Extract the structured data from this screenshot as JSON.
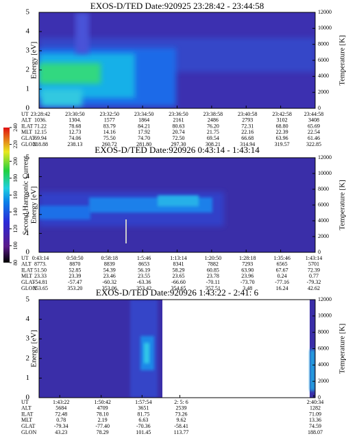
{
  "chart_data": [
    {
      "type": "spectrogram",
      "title": "EXOS-D/TED   Date:920925  23:28:42 - 23:44:58",
      "ylabel": "Energy [eV]",
      "y2label": "Temperature [K]",
      "ylim": [
        0,
        5
      ],
      "yticks": [
        0,
        1,
        2,
        3,
        4,
        5
      ],
      "y2lim": [
        0,
        12000
      ],
      "y2ticks": [
        0,
        2000,
        4000,
        6000,
        8000,
        10000,
        12000
      ],
      "table": {
        "labels": [
          "UT",
          "ALT",
          "ILAT",
          "MLT",
          "GLAT",
          "GLON"
        ],
        "rows": [
          [
            "23:28:42",
            "23:30:50",
            "23:32:50",
            "23:34:50",
            "23:36:50",
            "23:38:58",
            "23:40:58",
            "23:42:58",
            "23:44:58"
          ],
          [
            "1036.",
            "1304.",
            "1577",
            "1864",
            "2161",
            "2486",
            "2793",
            "3102",
            "3408"
          ],
          [
            "71.22",
            "78.68",
            "83.79",
            "84.21",
            "80.63",
            "76.20",
            "72.31",
            "68.80",
            "65.69"
          ],
          [
            "12.15",
            "12.73",
            "14.16",
            "17.92",
            "20.74",
            "21.75",
            "22.16",
            "22.39",
            "22.54"
          ],
          [
            "69.94",
            "74.06",
            "75.50",
            "74.70",
            "72.50",
            "69.54",
            "66.68",
            "63.96",
            "61.46"
          ],
          [
            "218.88",
            "238.13",
            "260.72",
            "281.80",
            "297.30",
            "308.21",
            "314.94",
            "319.57",
            "322.85"
          ]
        ]
      }
    },
    {
      "type": "spectrogram",
      "title": "EXOS-D/TED   Date:920926  0:43:14 - 1:43:14",
      "ylabel": "Energy [eV]",
      "y2label": "Temperature [K]",
      "ylim": [
        0,
        5
      ],
      "yticks": [
        0,
        1,
        2,
        3,
        4,
        5
      ],
      "y2lim": [
        0,
        12000
      ],
      "y2ticks": [
        0,
        2000,
        4000,
        6000,
        8000,
        10000,
        12000
      ],
      "table": {
        "labels": [
          "UT",
          "ALT",
          "ILAT",
          "MLT",
          "GLAT",
          "GLON"
        ],
        "rows": [
          [
            "0:43:14",
            "0:50:50",
            "0:58:18",
            "1:5:46",
            "1:13:14",
            "1:20:50",
            "1:28:18",
            "1:35:46",
            "1:43:14"
          ],
          [
            "8773.",
            "8870",
            "8839",
            "8653",
            "8341",
            "7882",
            "7293",
            "6565",
            "5701"
          ],
          [
            "51.50",
            "52.85",
            "54.39",
            "56.19",
            "58.29",
            "60.85",
            "63.90",
            "67.67",
            "72.39"
          ],
          [
            "23.33",
            "23.39",
            "23.46",
            "23.55",
            "23.65",
            "23.78",
            "23.96",
            "0.24",
            "0.77"
          ],
          [
            "-54.81",
            "-57.47",
            "-60.32",
            "-63.36",
            "-66.60",
            "-70.11",
            "-73.70",
            "-77.16",
            "-79.32"
          ],
          [
            "353.65",
            "353.20",
            "353.06",
            "353.42",
            "354.65",
            "357.51",
            "3.48",
            "16.24",
            "42.62"
          ]
        ]
      }
    },
    {
      "type": "spectrogram",
      "title": "EXOS-D/TED   Date:920926  1:43:22 - 2:41: 6",
      "ylabel": "Energy [eV]",
      "y2label": "Temperature [K]",
      "ylim": [
        0,
        5
      ],
      "yticks": [
        0,
        1,
        2,
        3,
        4,
        5
      ],
      "y2lim": [
        0,
        12000
      ],
      "y2ticks": [
        0,
        2000,
        4000,
        6000,
        8000,
        10000,
        12000
      ],
      "table": {
        "labels": [
          "UT",
          "ALT",
          "ILAT",
          "MLT",
          "GLAT",
          "GLON"
        ],
        "rows": [
          [
            "1:43:22",
            "1:50:42",
            "1:57:54",
            "2: 5: 6",
            "2:40:34"
          ],
          [
            "5684",
            "4709",
            "3651",
            "2539",
            "1282"
          ],
          [
            "72.48",
            "78.10",
            "81.75",
            "73.26",
            "71.09"
          ],
          [
            "0.78",
            "2.19",
            "6.63",
            "9.62",
            "13.36"
          ],
          [
            "-79.34",
            "-77.40",
            "-70.36",
            "-58.41",
            "74.59"
          ],
          [
            "43.23",
            "78.29",
            "101.45",
            "113.77",
            "188.07"
          ]
        ]
      }
    }
  ],
  "colorbar": {
    "label": "Second Harmonic Current",
    "lim": [
      80,
      240
    ],
    "ticks": [
      80,
      100,
      120,
      140,
      160,
      180,
      200,
      220,
      240
    ]
  }
}
